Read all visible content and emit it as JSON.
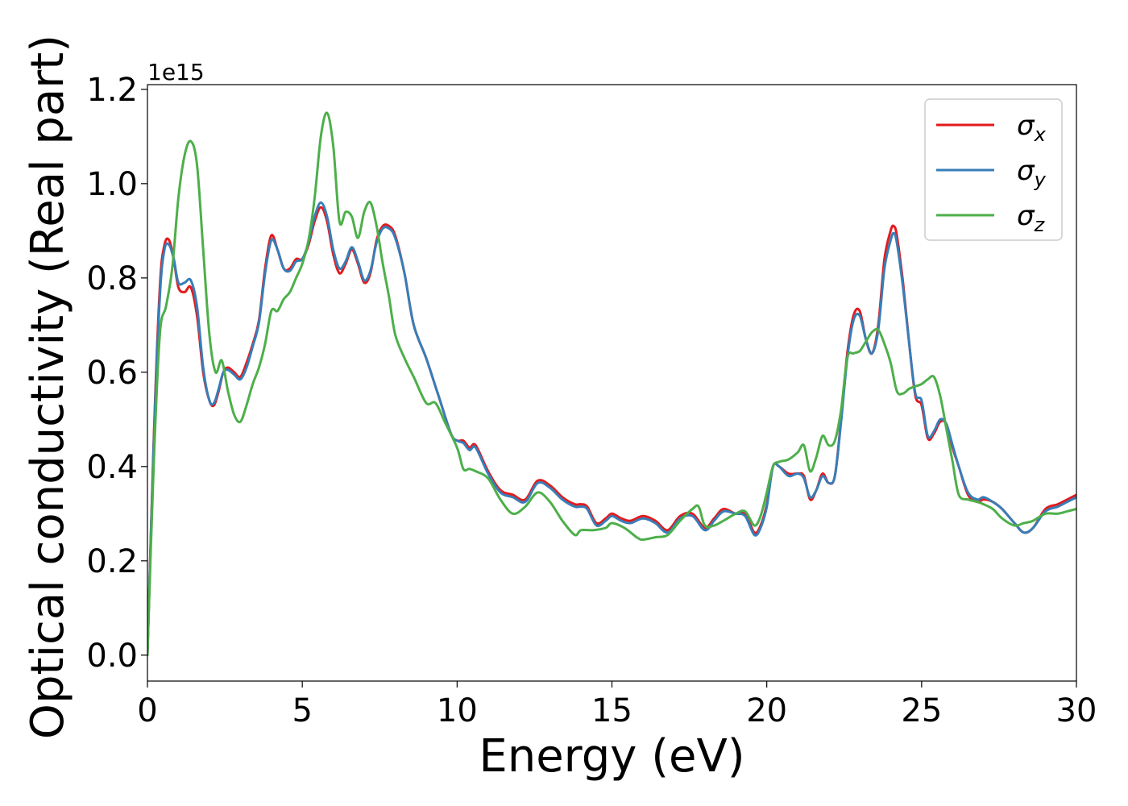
{
  "chart_data": {
    "type": "line",
    "title": "",
    "xlabel": "Energy (eV)",
    "ylabel": "Optical conductivity (Real part)",
    "y_offset_label": "1e15",
    "xlim": [
      0,
      30
    ],
    "ylim": [
      -0.055,
      1.21
    ],
    "xticks": [
      0,
      5,
      10,
      15,
      20,
      25,
      30
    ],
    "xtick_labels": [
      "0",
      "5",
      "10",
      "15",
      "20",
      "25",
      "30"
    ],
    "yticks": [
      0.0,
      0.2,
      0.4,
      0.6,
      0.8,
      1.0,
      1.2
    ],
    "ytick_labels": [
      "0.0",
      "0.2",
      "0.4",
      "0.6",
      "0.8",
      "1.0",
      "1.2"
    ],
    "grid": false,
    "legend_position": "top-right",
    "series": [
      {
        "name": "σ",
        "subscript": "x",
        "color": "#e41a1c",
        "x": [
          0,
          0.2,
          0.4,
          0.55,
          0.7,
          0.85,
          1.0,
          1.2,
          1.4,
          1.6,
          1.8,
          2.0,
          2.15,
          2.3,
          2.45,
          2.6,
          2.8,
          3.0,
          3.2,
          3.4,
          3.6,
          3.8,
          4.0,
          4.2,
          4.4,
          4.6,
          4.8,
          5.0,
          5.2,
          5.4,
          5.6,
          5.8,
          6.0,
          6.2,
          6.4,
          6.6,
          6.8,
          7.0,
          7.2,
          7.4,
          7.6,
          7.8,
          8.0,
          8.3,
          8.6,
          9.0,
          9.4,
          9.8,
          10.0,
          10.2,
          10.4,
          10.6,
          11.0,
          11.4,
          11.8,
          12.2,
          12.6,
          13.0,
          13.4,
          13.8,
          14.0,
          14.2,
          14.5,
          14.8,
          15.0,
          15.3,
          15.6,
          16.0,
          16.4,
          16.8,
          17.2,
          17.6,
          18.0,
          18.3,
          18.6,
          19.0,
          19.3,
          19.6,
          19.8,
          20.0,
          20.2,
          20.4,
          20.7,
          21.0,
          21.2,
          21.4,
          21.6,
          21.8,
          22.0,
          22.2,
          22.4,
          22.6,
          22.8,
          23.0,
          23.2,
          23.4,
          23.6,
          23.8,
          24.0,
          24.1,
          24.2,
          24.4,
          24.6,
          24.8,
          25.0,
          25.2,
          25.4,
          25.6,
          25.8,
          26.0,
          26.2,
          26.5,
          26.8,
          27.0,
          27.3,
          27.6,
          28.0,
          28.3,
          28.6,
          29.0,
          29.4,
          29.7,
          30.0
        ],
        "values": [
          0.0,
          0.45,
          0.78,
          0.87,
          0.88,
          0.84,
          0.78,
          0.77,
          0.78,
          0.72,
          0.6,
          0.54,
          0.53,
          0.56,
          0.6,
          0.61,
          0.6,
          0.59,
          0.62,
          0.66,
          0.71,
          0.82,
          0.89,
          0.86,
          0.82,
          0.82,
          0.84,
          0.84,
          0.87,
          0.92,
          0.95,
          0.92,
          0.85,
          0.81,
          0.83,
          0.86,
          0.83,
          0.79,
          0.81,
          0.88,
          0.91,
          0.91,
          0.89,
          0.81,
          0.7,
          0.63,
          0.55,
          0.47,
          0.455,
          0.455,
          0.44,
          0.445,
          0.39,
          0.35,
          0.34,
          0.33,
          0.37,
          0.36,
          0.335,
          0.32,
          0.32,
          0.315,
          0.28,
          0.29,
          0.3,
          0.29,
          0.285,
          0.295,
          0.285,
          0.265,
          0.295,
          0.3,
          0.27,
          0.29,
          0.31,
          0.3,
          0.3,
          0.26,
          0.275,
          0.32,
          0.4,
          0.4,
          0.385,
          0.385,
          0.38,
          0.33,
          0.35,
          0.385,
          0.365,
          0.38,
          0.5,
          0.64,
          0.72,
          0.73,
          0.67,
          0.64,
          0.7,
          0.84,
          0.9,
          0.91,
          0.89,
          0.79,
          0.66,
          0.55,
          0.53,
          0.46,
          0.47,
          0.495,
          0.49,
          0.44,
          0.4,
          0.34,
          0.325,
          0.33,
          0.325,
          0.31,
          0.28,
          0.26,
          0.27,
          0.31,
          0.32,
          0.33,
          0.34
        ]
      },
      {
        "name": "σ",
        "subscript": "y",
        "color": "#377eb8",
        "x": [
          0,
          0.2,
          0.4,
          0.55,
          0.7,
          0.85,
          1.0,
          1.2,
          1.4,
          1.6,
          1.8,
          2.0,
          2.15,
          2.3,
          2.45,
          2.6,
          2.8,
          3.0,
          3.2,
          3.4,
          3.6,
          3.8,
          4.0,
          4.2,
          4.4,
          4.6,
          4.8,
          5.0,
          5.2,
          5.4,
          5.6,
          5.8,
          6.0,
          6.2,
          6.4,
          6.6,
          6.8,
          7.0,
          7.2,
          7.4,
          7.6,
          7.8,
          8.0,
          8.3,
          8.6,
          9.0,
          9.4,
          9.8,
          10.0,
          10.2,
          10.4,
          10.6,
          11.0,
          11.4,
          11.8,
          12.2,
          12.6,
          13.0,
          13.4,
          13.8,
          14.0,
          14.2,
          14.5,
          14.8,
          15.0,
          15.3,
          15.6,
          16.0,
          16.4,
          16.8,
          17.2,
          17.6,
          18.0,
          18.3,
          18.6,
          19.0,
          19.3,
          19.6,
          19.8,
          20.0,
          20.2,
          20.4,
          20.7,
          21.0,
          21.2,
          21.4,
          21.6,
          21.8,
          22.0,
          22.2,
          22.4,
          22.6,
          22.8,
          23.0,
          23.2,
          23.4,
          23.6,
          23.8,
          24.0,
          24.1,
          24.2,
          24.4,
          24.6,
          24.8,
          25.0,
          25.2,
          25.4,
          25.6,
          25.8,
          26.0,
          26.2,
          26.5,
          26.8,
          27.0,
          27.3,
          27.6,
          28.0,
          28.3,
          28.6,
          29.0,
          29.4,
          29.7,
          30.0
        ],
        "values": [
          0.0,
          0.44,
          0.76,
          0.86,
          0.87,
          0.84,
          0.79,
          0.79,
          0.795,
          0.74,
          0.61,
          0.54,
          0.535,
          0.565,
          0.6,
          0.605,
          0.595,
          0.585,
          0.61,
          0.655,
          0.705,
          0.81,
          0.88,
          0.86,
          0.82,
          0.815,
          0.835,
          0.84,
          0.875,
          0.93,
          0.96,
          0.93,
          0.86,
          0.82,
          0.835,
          0.865,
          0.835,
          0.795,
          0.815,
          0.875,
          0.905,
          0.905,
          0.885,
          0.81,
          0.7,
          0.63,
          0.55,
          0.47,
          0.455,
          0.45,
          0.435,
          0.44,
          0.385,
          0.345,
          0.335,
          0.325,
          0.365,
          0.355,
          0.33,
          0.315,
          0.315,
          0.31,
          0.275,
          0.285,
          0.295,
          0.285,
          0.28,
          0.29,
          0.28,
          0.26,
          0.29,
          0.295,
          0.265,
          0.285,
          0.305,
          0.3,
          0.295,
          0.255,
          0.27,
          0.315,
          0.4,
          0.4,
          0.38,
          0.385,
          0.375,
          0.335,
          0.35,
          0.38,
          0.365,
          0.38,
          0.495,
          0.63,
          0.71,
          0.72,
          0.67,
          0.64,
          0.69,
          0.82,
          0.88,
          0.895,
          0.875,
          0.78,
          0.66,
          0.555,
          0.54,
          0.465,
          0.475,
          0.5,
          0.49,
          0.445,
          0.4,
          0.345,
          0.33,
          0.335,
          0.325,
          0.31,
          0.28,
          0.26,
          0.27,
          0.305,
          0.315,
          0.325,
          0.335
        ]
      },
      {
        "name": "σ",
        "subscript": "z",
        "color": "#4daf4a",
        "x": [
          0,
          0.2,
          0.4,
          0.6,
          0.8,
          1.0,
          1.2,
          1.4,
          1.6,
          1.8,
          2.0,
          2.2,
          2.4,
          2.6,
          2.8,
          3.0,
          3.2,
          3.4,
          3.6,
          3.8,
          4.0,
          4.2,
          4.4,
          4.6,
          4.8,
          5.0,
          5.2,
          5.4,
          5.6,
          5.8,
          6.0,
          6.2,
          6.4,
          6.6,
          6.8,
          7.0,
          7.2,
          7.4,
          7.6,
          7.8,
          8.0,
          8.3,
          8.6,
          9.0,
          9.3,
          9.6,
          10.0,
          10.2,
          10.4,
          10.6,
          11.0,
          11.4,
          11.8,
          12.2,
          12.6,
          13.0,
          13.4,
          13.8,
          14.0,
          14.4,
          14.8,
          15.0,
          15.4,
          15.8,
          16.0,
          16.4,
          16.8,
          17.2,
          17.6,
          17.8,
          18.0,
          18.3,
          18.6,
          19.0,
          19.3,
          19.6,
          19.8,
          20.0,
          20.2,
          20.4,
          20.7,
          21.0,
          21.2,
          21.4,
          21.6,
          21.8,
          22.0,
          22.2,
          22.4,
          22.6,
          22.8,
          23.0,
          23.2,
          23.4,
          23.6,
          23.8,
          24.0,
          24.2,
          24.4,
          24.6,
          24.8,
          25.0,
          25.2,
          25.4,
          25.6,
          25.8,
          26.0,
          26.2,
          26.5,
          26.8,
          27.0,
          27.3,
          27.6,
          28.0,
          28.3,
          28.6,
          29.0,
          29.4,
          29.7,
          30.0
        ],
        "values": [
          0.0,
          0.4,
          0.68,
          0.74,
          0.82,
          0.97,
          1.06,
          1.09,
          1.04,
          0.86,
          0.68,
          0.6,
          0.625,
          0.56,
          0.51,
          0.495,
          0.53,
          0.575,
          0.61,
          0.66,
          0.73,
          0.73,
          0.755,
          0.77,
          0.8,
          0.83,
          0.88,
          0.97,
          1.1,
          1.15,
          1.08,
          0.92,
          0.94,
          0.93,
          0.885,
          0.94,
          0.96,
          0.91,
          0.83,
          0.76,
          0.68,
          0.63,
          0.59,
          0.535,
          0.535,
          0.495,
          0.44,
          0.395,
          0.395,
          0.39,
          0.375,
          0.33,
          0.3,
          0.315,
          0.345,
          0.325,
          0.285,
          0.255,
          0.265,
          0.265,
          0.27,
          0.28,
          0.27,
          0.25,
          0.245,
          0.25,
          0.255,
          0.285,
          0.31,
          0.315,
          0.275,
          0.275,
          0.285,
          0.3,
          0.305,
          0.275,
          0.295,
          0.345,
          0.4,
          0.41,
          0.415,
          0.43,
          0.445,
          0.39,
          0.42,
          0.465,
          0.445,
          0.455,
          0.52,
          0.63,
          0.64,
          0.645,
          0.665,
          0.685,
          0.69,
          0.66,
          0.62,
          0.56,
          0.555,
          0.565,
          0.57,
          0.575,
          0.585,
          0.59,
          0.55,
          0.48,
          0.41,
          0.34,
          0.33,
          0.325,
          0.32,
          0.31,
          0.29,
          0.275,
          0.28,
          0.285,
          0.3,
          0.3,
          0.305,
          0.31
        ]
      }
    ]
  }
}
